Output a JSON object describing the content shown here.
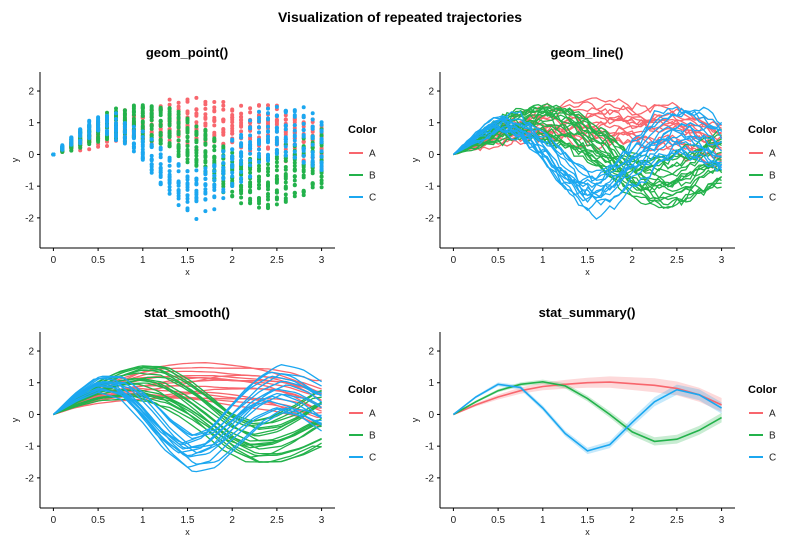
{
  "figure": {
    "title": "Visualization of repeated trajectories"
  },
  "chart_data": {
    "legend": {
      "title": "Color",
      "items": [
        "A",
        "B",
        "C"
      ],
      "placement": "right"
    },
    "series_colors": {
      "A": "#F8666D",
      "B": "#23B24B",
      "C": "#1BA7F0"
    },
    "x_ticks": [
      0,
      0.5,
      1,
      1.5,
      2,
      2.5,
      3
    ],
    "x_tick_labels": [
      "0",
      "0.5",
      "1",
      "1.5",
      "2",
      "2.5",
      "3"
    ],
    "y_ticks": [
      -2,
      -1,
      0,
      1,
      2
    ],
    "y_tick_labels": [
      "-2",
      "-1",
      "0",
      "1",
      "2"
    ],
    "xlim": [
      -0.15,
      3.15
    ],
    "ylim": [
      -2.95,
      2.6
    ],
    "xlabel": "x",
    "ylabel": "y",
    "grid": false,
    "panels": [
      {
        "title": "geom_point()",
        "type": "scatter"
      },
      {
        "title": "geom_line()",
        "type": "line"
      },
      {
        "title": "stat_smooth()",
        "type": "line"
      },
      {
        "title": "stat_summary()",
        "type": "line",
        "ribbons": true
      }
    ],
    "summary_mean": {
      "x": [
        0,
        0.25,
        0.5,
        0.75,
        1,
        1.25,
        1.5,
        1.75,
        2,
        2.25,
        2.5,
        2.75,
        3
      ],
      "A": [
        0,
        0.3,
        0.55,
        0.75,
        0.88,
        0.95,
        1.0,
        1.02,
        0.97,
        0.92,
        0.82,
        0.62,
        0.3
      ],
      "B": [
        0,
        0.4,
        0.75,
        0.95,
        1.03,
        0.9,
        0.5,
        0.0,
        -0.55,
        -0.85,
        -0.78,
        -0.5,
        -0.1
      ],
      "C": [
        0,
        0.55,
        0.95,
        0.85,
        0.2,
        -0.6,
        -1.15,
        -0.95,
        -0.25,
        0.4,
        0.78,
        0.62,
        0.2
      ]
    },
    "summary_band_halfwidth": {
      "A": [
        0.02,
        0.05,
        0.08,
        0.1,
        0.12,
        0.14,
        0.16,
        0.18,
        0.2,
        0.22,
        0.22,
        0.22,
        0.22
      ],
      "B": [
        0.02,
        0.04,
        0.05,
        0.06,
        0.07,
        0.08,
        0.09,
        0.1,
        0.12,
        0.13,
        0.14,
        0.14,
        0.15
      ],
      "C": [
        0.02,
        0.04,
        0.06,
        0.07,
        0.08,
        0.09,
        0.1,
        0.11,
        0.13,
        0.14,
        0.16,
        0.17,
        0.18
      ]
    },
    "trajectory_counts": {
      "A": 15,
      "B": 20,
      "C": 15
    }
  }
}
